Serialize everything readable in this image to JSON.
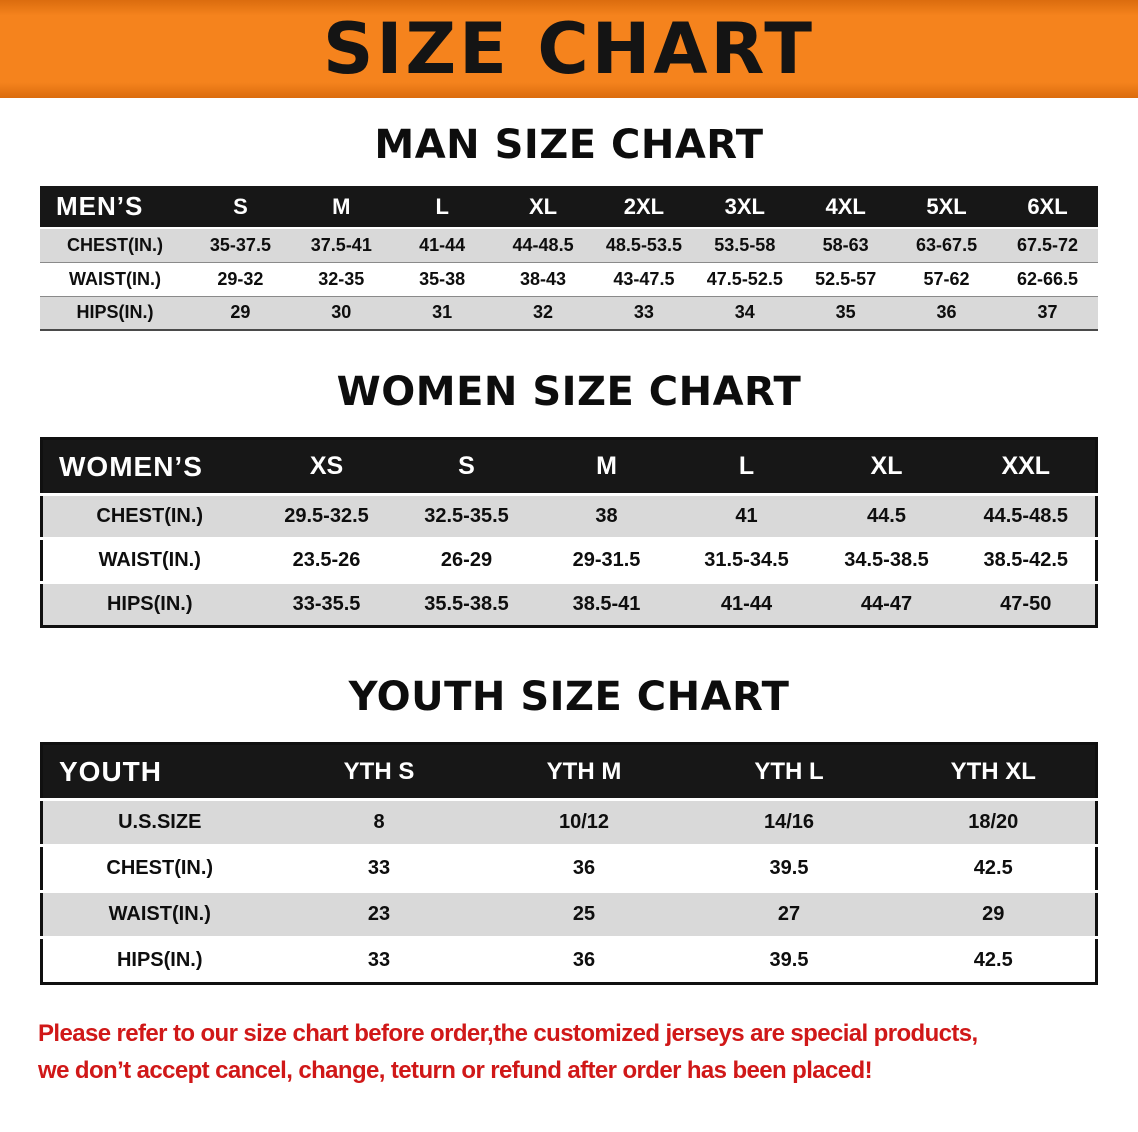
{
  "banner": {
    "title": "SIZE CHART"
  },
  "colors": {
    "banner_bg": "#f5831d",
    "header_bg": "#171717",
    "row_alt": "#d9d9d9",
    "note_red": "#d01818"
  },
  "sections": [
    {
      "heading": "MAN SIZE CHART",
      "table": {
        "header": [
          "MEN’S",
          "S",
          "M",
          "L",
          "XL",
          "2XL",
          "3XL",
          "4XL",
          "5XL",
          "6XL"
        ],
        "rows": [
          [
            "CHEST(IN.)",
            "35-37.5",
            "37.5-41",
            "41-44",
            "44-48.5",
            "48.5-53.5",
            "53.5-58",
            "58-63",
            "63-67.5",
            "67.5-72"
          ],
          [
            "WAIST(IN.)",
            "29-32",
            "32-35",
            "35-38",
            "38-43",
            "43-47.5",
            "47.5-52.5",
            "52.5-57",
            "57-62",
            "62-66.5"
          ],
          [
            "HIPS(IN.)",
            "29",
            "30",
            "31",
            "32",
            "33",
            "34",
            "35",
            "36",
            "37"
          ]
        ]
      }
    },
    {
      "heading": "WOMEN SIZE CHART",
      "table": {
        "header": [
          "WOMEN’S",
          "XS",
          "S",
          "M",
          "L",
          "XL",
          "XXL"
        ],
        "rows": [
          [
            "CHEST(IN.)",
            "29.5-32.5",
            "32.5-35.5",
            "38",
            "41",
            "44.5",
            "44.5-48.5"
          ],
          [
            "WAIST(IN.)",
            "23.5-26",
            "26-29",
            "29-31.5",
            "31.5-34.5",
            "34.5-38.5",
            "38.5-42.5"
          ],
          [
            "HIPS(IN.)",
            "33-35.5",
            "35.5-38.5",
            "38.5-41",
            "41-44",
            "44-47",
            "47-50"
          ]
        ]
      }
    },
    {
      "heading": "YOUTH SIZE CHART",
      "table": {
        "header": [
          "YOUTH",
          "YTH S",
          "YTH M",
          "YTH L",
          "YTH XL"
        ],
        "rows": [
          [
            "U.S.SIZE",
            "8",
            "10/12",
            "14/16",
            "18/20"
          ],
          [
            "CHEST(IN.)",
            "33",
            "36",
            "39.5",
            "42.5"
          ],
          [
            "WAIST(IN.)",
            "23",
            "25",
            "27",
            "29"
          ],
          [
            "HIPS(IN.)",
            "33",
            "36",
            "39.5",
            "42.5"
          ]
        ]
      }
    }
  ],
  "note": {
    "line1": "Please refer to our size chart before order,the customized jerseys are special products,",
    "line2": "we don’t accept cancel, change, teturn or refund after order has been placed!"
  }
}
